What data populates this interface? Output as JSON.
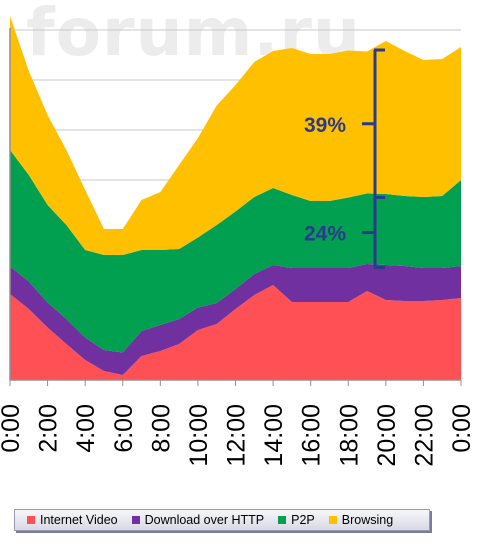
{
  "watermark": "forum.ru",
  "chart_data": {
    "type": "area",
    "stacked": true,
    "x": [
      "0:00",
      "1:00",
      "2:00",
      "3:00",
      "4:00",
      "5:00",
      "6:00",
      "7:00",
      "8:00",
      "9:00",
      "10:00",
      "11:00",
      "12:00",
      "13:00",
      "14:00",
      "15:00",
      "16:00",
      "17:00",
      "18:00",
      "19:00",
      "20:00",
      "21:00",
      "22:00",
      "23:00",
      "0:00"
    ],
    "tick_labels": [
      "0:00",
      "2:00",
      "4:00",
      "6:00",
      "8:00",
      "10:00",
      "12:00",
      "14:00",
      "16:00",
      "18:00",
      "20:00",
      "22:00",
      "0:00"
    ],
    "ylim": [
      0,
      7
    ],
    "grid": true,
    "legend_position": "bottom",
    "series": [
      {
        "name": "Internet Video",
        "color": "#ff5055",
        "values": [
          1.72,
          1.42,
          1.05,
          0.72,
          0.4,
          0.18,
          0.1,
          0.48,
          0.58,
          0.72,
          1.0,
          1.12,
          1.42,
          1.7,
          1.9,
          1.56,
          1.56,
          1.56,
          1.56,
          1.78,
          1.6,
          1.58,
          1.58,
          1.6,
          1.64
        ]
      },
      {
        "name": "Download over HTTP",
        "color": "#7030a0",
        "values": [
          0.55,
          0.55,
          0.5,
          0.5,
          0.45,
          0.42,
          0.45,
          0.5,
          0.52,
          0.5,
          0.45,
          0.42,
          0.4,
          0.42,
          0.4,
          0.68,
          0.68,
          0.68,
          0.68,
          0.54,
          0.7,
          0.7,
          0.66,
          0.64,
          0.64
        ]
      },
      {
        "name": "P2P",
        "color": "#00a050",
        "values": [
          2.33,
          2.13,
          1.95,
          1.88,
          1.75,
          1.9,
          1.95,
          1.62,
          1.5,
          1.4,
          1.4,
          1.56,
          1.55,
          1.54,
          1.54,
          1.46,
          1.34,
          1.34,
          1.41,
          1.41,
          1.42,
          1.4,
          1.42,
          1.44,
          1.72
        ]
      },
      {
        "name": "Browsing",
        "color": "#ffc000",
        "values": [
          2.68,
          2.08,
          1.8,
          1.5,
          1.2,
          0.52,
          0.52,
          1.0,
          1.16,
          1.68,
          1.99,
          2.39,
          2.53,
          2.7,
          2.74,
          2.94,
          2.94,
          2.94,
          2.94,
          2.84,
          3.06,
          2.9,
          2.74,
          2.74,
          2.66
        ]
      }
    ],
    "annotations": [
      {
        "text": "39%",
        "from": 3.65,
        "to": 6.6,
        "at_x": 19
      },
      {
        "text": "24%",
        "from": 2.25,
        "to": 3.65,
        "at_x": 19
      }
    ]
  }
}
